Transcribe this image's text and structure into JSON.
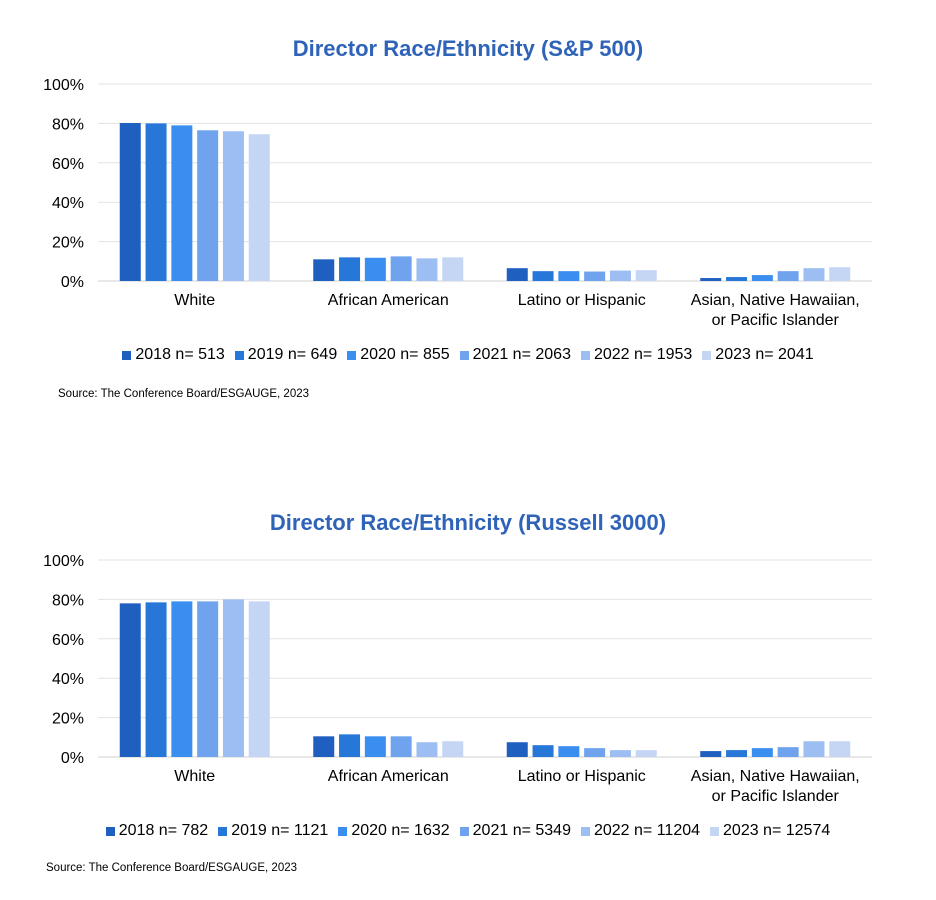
{
  "chart_data": [
    {
      "type": "bar",
      "title": "Director Race/Ethnicity (S&P 500)",
      "categories": [
        "White",
        "African American",
        "Latino or Hispanic",
        "Asian, Native Hawaiian, or Pacific Islander"
      ],
      "category_lines": [
        [
          "White"
        ],
        [
          "African American"
        ],
        [
          "Latino or Hispanic"
        ],
        [
          "Asian, Native Hawaiian,",
          "or Pacific Islander"
        ]
      ],
      "yticks": [
        "0%",
        "20%",
        "40%",
        "60%",
        "80%",
        "100%"
      ],
      "ylim": [
        0,
        100
      ],
      "grid": true,
      "legend_position": "bottom",
      "series": [
        {
          "name": "2018 n= 513",
          "color": "#1F5FBF",
          "values": [
            80.2,
            11.0,
            6.5,
            1.5
          ]
        },
        {
          "name": "2019 n= 649",
          "color": "#2777D9",
          "values": [
            80.0,
            12.0,
            5.0,
            2.0
          ]
        },
        {
          "name": "2020 n= 855",
          "color": "#3A8EF0",
          "values": [
            79.0,
            11.8,
            5.0,
            3.0
          ]
        },
        {
          "name": "2021 n= 2063",
          "color": "#6FA3EE",
          "values": [
            76.5,
            12.5,
            4.8,
            5.0
          ]
        },
        {
          "name": "2022 n= 1953",
          "color": "#9DBEF2",
          "values": [
            76.0,
            11.5,
            5.3,
            6.5
          ]
        },
        {
          "name": "2023 n= 2041",
          "color": "#C5D6F5",
          "values": [
            74.5,
            12.0,
            5.5,
            7.0
          ]
        }
      ],
      "source": "Source: The Conference Board/ESGAUGE, 2023"
    },
    {
      "type": "bar",
      "title": "Director Race/Ethnicity (Russell 3000)",
      "categories": [
        "White",
        "African American",
        "Latino or Hispanic",
        "Asian, Native Hawaiian, or Pacific Islander"
      ],
      "category_lines": [
        [
          "White"
        ],
        [
          "African American"
        ],
        [
          "Latino or Hispanic"
        ],
        [
          "Asian, Native Hawaiian,",
          "or Pacific Islander"
        ]
      ],
      "yticks": [
        "0%",
        "20%",
        "40%",
        "60%",
        "80%",
        "100%"
      ],
      "ylim": [
        0,
        100
      ],
      "grid": true,
      "legend_position": "bottom",
      "series": [
        {
          "name": "2018 n= 782",
          "color": "#1F5FBF",
          "values": [
            78.0,
            10.5,
            7.5,
            3.0
          ]
        },
        {
          "name": "2019 n= 1121",
          "color": "#2777D9",
          "values": [
            78.5,
            11.5,
            6.0,
            3.5
          ]
        },
        {
          "name": "2020 n= 1632",
          "color": "#3A8EF0",
          "values": [
            79.0,
            10.5,
            5.5,
            4.5
          ]
        },
        {
          "name": "2021 n= 5349",
          "color": "#6FA3EE",
          "values": [
            79.0,
            10.5,
            4.5,
            5.0
          ]
        },
        {
          "name": "2022 n= 11204",
          "color": "#9DBEF2",
          "values": [
            80.0,
            7.5,
            3.5,
            8.0
          ]
        },
        {
          "name": "2023 n= 12574",
          "color": "#C5D6F5",
          "values": [
            79.0,
            8.0,
            3.5,
            8.0
          ]
        }
      ],
      "source": "Source: The Conference Board/ESGAUGE, 2023"
    }
  ]
}
